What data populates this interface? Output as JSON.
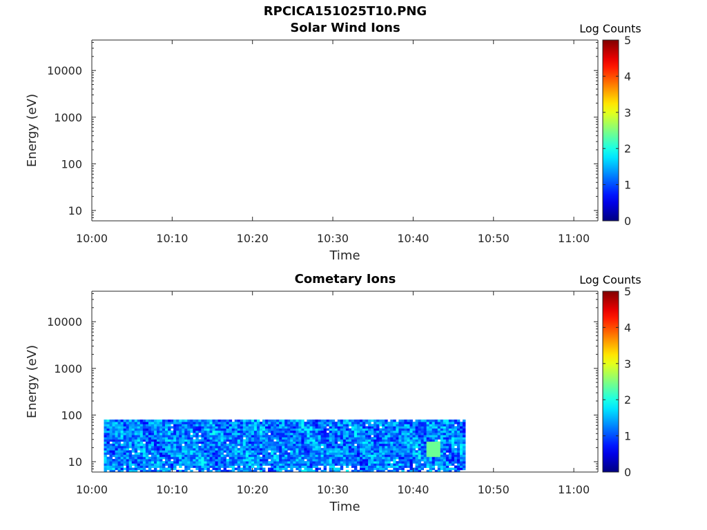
{
  "figure": {
    "title": "RPCICA151025T10.PNG"
  },
  "chart_data": [
    {
      "type": "heatmap",
      "title": "Solar Wind Ions",
      "xlabel": "Time",
      "ylabel": "Energy (eV)",
      "x_ticks": [
        "10:00",
        "10:10",
        "10:20",
        "10:30",
        "10:40",
        "10:50",
        "11:00"
      ],
      "x_range_minutes": [
        0,
        63
      ],
      "y_scale": "log",
      "y_ticks": [
        10,
        100,
        1000,
        10000
      ],
      "y_tick_labels": [
        "10",
        "100",
        "1000",
        "10000"
      ],
      "y_range": [
        6,
        45000
      ],
      "colorbar": {
        "label": "Log Counts",
        "range": [
          0,
          5
        ],
        "ticks": [
          "0",
          "1",
          "2",
          "3",
          "4",
          "5"
        ],
        "colormap": "jet"
      },
      "data_present": false
    },
    {
      "type": "heatmap",
      "title": "Cometary Ions",
      "xlabel": "Time",
      "ylabel": "Energy (eV)",
      "x_ticks": [
        "10:00",
        "10:10",
        "10:20",
        "10:30",
        "10:40",
        "10:50",
        "11:00"
      ],
      "x_range_minutes": [
        0,
        63
      ],
      "y_scale": "log",
      "y_ticks": [
        10,
        100,
        1000,
        10000
      ],
      "y_tick_labels": [
        "10",
        "100",
        "1000",
        "10000"
      ],
      "y_range": [
        6,
        45000
      ],
      "colorbar": {
        "label": "Log Counts",
        "range": [
          0,
          5
        ],
        "ticks": [
          "0",
          "1",
          "2",
          "3",
          "4",
          "5"
        ],
        "colormap": "jet"
      },
      "data_present": true,
      "data_time_range_minutes": [
        1.5,
        46.5
      ],
      "data_energy_range_eV": [
        6,
        80
      ],
      "typical_log_counts": [
        0.5,
        2.0
      ],
      "peak_log_counts": 2.4
    }
  ]
}
